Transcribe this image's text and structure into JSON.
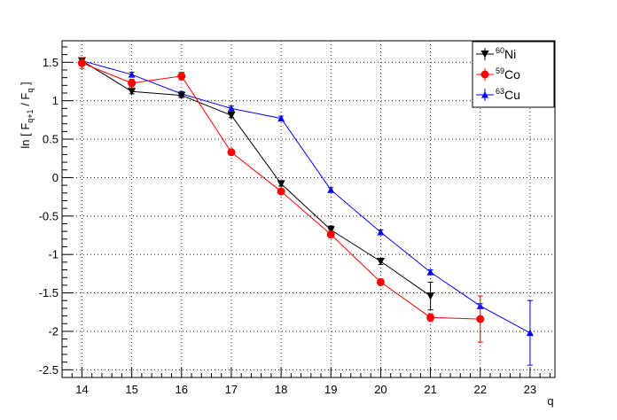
{
  "chart_data": {
    "type": "scatter",
    "xlabel": "q",
    "ylabel": "ln [ F q+1 / F q ]",
    "ylabel_parts": {
      "prefix": "ln [ F",
      "sub1": "q+1",
      "mid": " / F",
      "sub2": "q",
      "suffix": " ]"
    },
    "xlim": [
      13.6,
      23.5
    ],
    "ylim": [
      -2.6,
      1.78
    ],
    "xticks": [
      14,
      15,
      16,
      17,
      18,
      19,
      20,
      21,
      22,
      23
    ],
    "xtick_labels": [
      "14",
      "15",
      "16",
      "17",
      "18",
      "19",
      "20",
      "21",
      "22",
      "23"
    ],
    "yticks": [
      -2.5,
      -2,
      -1.5,
      -1,
      -0.5,
      0,
      0.5,
      1,
      1.5
    ],
    "ytick_labels": [
      "-2.5",
      "-2",
      "-1.5",
      "-1",
      "-0.5",
      "0",
      "0.5",
      "1",
      "1.5"
    ],
    "grid": true,
    "legend_position": "top-right",
    "series": [
      {
        "name": "Ni",
        "sup": "60",
        "color": "#000000",
        "marker": "triangle-down",
        "x": [
          14,
          15,
          16,
          17,
          18,
          19,
          20,
          21
        ],
        "y": [
          1.52,
          1.12,
          1.07,
          0.81,
          -0.08,
          -0.68,
          -1.09,
          -1.54
        ],
        "err": [
          0.04,
          0.03,
          0.03,
          0.03,
          0.03,
          0.05,
          0.04,
          0.18
        ]
      },
      {
        "name": "Co",
        "sup": "59",
        "color": "#ff0000",
        "marker": "circle",
        "x": [
          14,
          15,
          16,
          17,
          18,
          19,
          20,
          21,
          22
        ],
        "y": [
          1.49,
          1.23,
          1.32,
          0.33,
          -0.18,
          -0.74,
          -1.36,
          -1.82,
          -1.84
        ],
        "err": [
          0.07,
          0.05,
          0.05,
          0.03,
          0.03,
          0.04,
          0.04,
          0.05,
          0.3
        ]
      },
      {
        "name": "Cu",
        "sup": "63",
        "color": "#0000ff",
        "marker": "triangle-up",
        "x": [
          14,
          15,
          16,
          17,
          18,
          19,
          20,
          21,
          22,
          23
        ],
        "y": [
          1.52,
          1.34,
          1.09,
          0.9,
          0.77,
          -0.16,
          -0.71,
          -1.23,
          -1.67,
          -2.02
        ],
        "err": [
          0.03,
          0.03,
          0.03,
          0.03,
          0.03,
          0.03,
          0.03,
          0.03,
          0.03,
          0.42
        ]
      }
    ]
  }
}
